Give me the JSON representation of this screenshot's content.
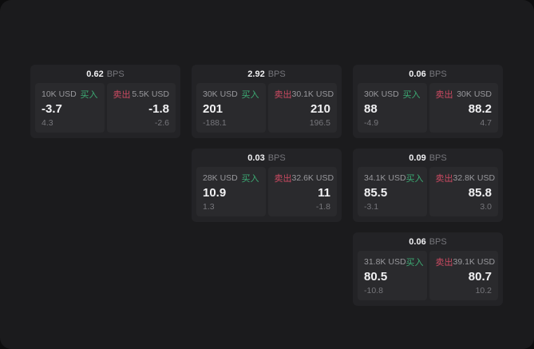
{
  "colors": {
    "outer_bg": "#0d0d0e",
    "page_bg": "#1b1b1d",
    "card_bg": "#232326",
    "panel_bg": "#2a2a2d",
    "text_primary": "#f1f1f3",
    "text_secondary": "#98989c",
    "text_dim": "#76767b",
    "buy_green": "#3cab74",
    "sell_red": "#cc4a62"
  },
  "labels": {
    "bps_suffix": "BPS",
    "buy": "买入",
    "sell": "卖出"
  },
  "cards": [
    {
      "col": 1,
      "row": 1,
      "bps": "0.62",
      "buy": {
        "amount": "10K USD",
        "value": "-3.7",
        "delta": "4.3"
      },
      "sell": {
        "amount": "5.5K USD",
        "value": "-1.8",
        "delta": "-2.6"
      }
    },
    {
      "col": 2,
      "row": 1,
      "bps": "2.92",
      "buy": {
        "amount": "30K USD",
        "value": "201",
        "delta": "-188.1"
      },
      "sell": {
        "amount": "30.1K USD",
        "value": "210",
        "delta": "196.5"
      }
    },
    {
      "col": 3,
      "row": 1,
      "bps": "0.06",
      "buy": {
        "amount": "30K USD",
        "value": "88",
        "delta": "-4.9"
      },
      "sell": {
        "amount": "30K USD",
        "value": "88.2",
        "delta": "4.7"
      }
    },
    {
      "col": 2,
      "row": 2,
      "bps": "0.03",
      "buy": {
        "amount": "28K USD",
        "value": "10.9",
        "delta": "1.3"
      },
      "sell": {
        "amount": "32.6K USD",
        "value": "11",
        "delta": "-1.8"
      }
    },
    {
      "col": 3,
      "row": 2,
      "bps": "0.09",
      "buy": {
        "amount": "34.1K USD",
        "value": "85.5",
        "delta": "-3.1"
      },
      "sell": {
        "amount": "32.8K USD",
        "value": "85.8",
        "delta": "3.0"
      }
    },
    {
      "col": 3,
      "row": 3,
      "bps": "0.06",
      "buy": {
        "amount": "31.8K USD",
        "value": "80.5",
        "delta": "-10.8"
      },
      "sell": {
        "amount": "39.1K USD",
        "value": "80.7",
        "delta": "10.2"
      }
    }
  ]
}
